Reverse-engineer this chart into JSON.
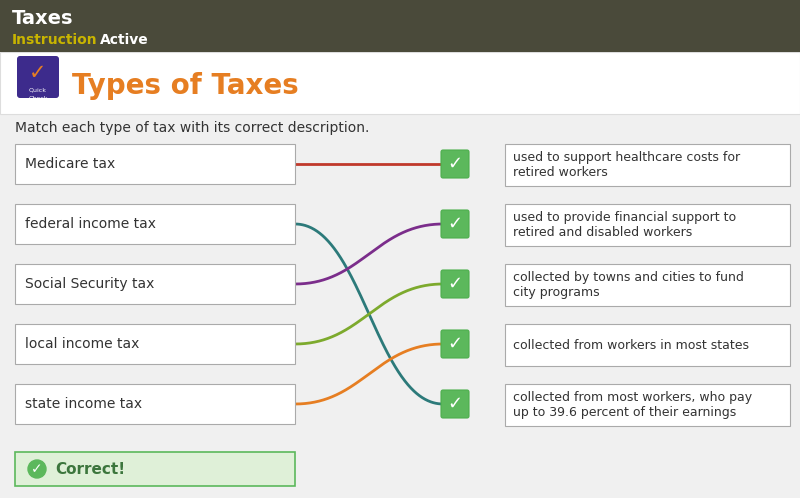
{
  "title": "Types of Taxes",
  "subtitle": "Match each type of tax with its correct description.",
  "header_title": "Taxes",
  "header_subtitle_left": "Instruction",
  "header_subtitle_right": "Active",
  "left_labels": [
    "Medicare tax",
    "federal income tax",
    "Social Security tax",
    "local income tax",
    "state income tax"
  ],
  "right_labels": [
    "used to support healthcare costs for\nretired workers",
    "used to provide financial support to\nretired and disabled workers",
    "collected by towns and cities to fund\ncity programs",
    "collected from workers in most states",
    "collected from most workers, who pay\nup to 39.6 percent of their earnings"
  ],
  "connections": [
    [
      0,
      0,
      "#c0392b"
    ],
    [
      1,
      4,
      "#2c7a7a"
    ],
    [
      2,
      1,
      "#7b2d8b"
    ],
    [
      3,
      2,
      "#7daa2d"
    ],
    [
      4,
      3,
      "#e67e22"
    ]
  ],
  "correct_label": "Correct!",
  "header_bg": "#4a4a3a",
  "header_text_color": "#ffffff",
  "header_instruction_color": "#c8b400",
  "content_bg": "#f0f0f0",
  "box_bg": "#ffffff",
  "box_border_color": "#aaaaaa",
  "check_bg": "#5cb85c",
  "check_border": "#4cae4c",
  "correct_banner_bg": "#dff0d8",
  "correct_banner_border": "#5cb85c",
  "title_color": "#e67e22",
  "quick_check_bg": "#3d2b8c",
  "section_bg": "#ffffff"
}
